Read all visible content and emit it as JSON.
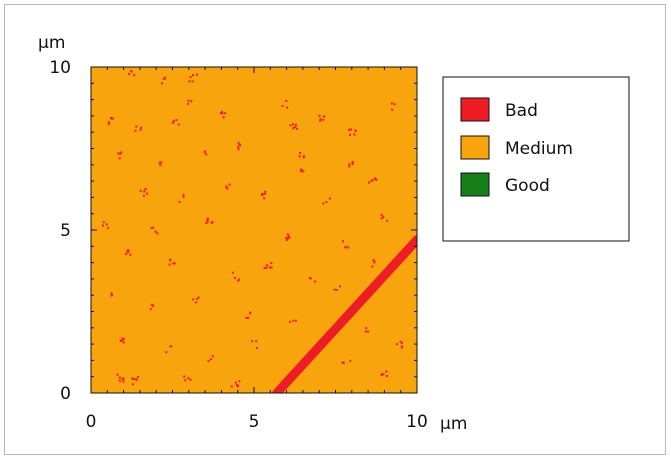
{
  "chart_data": {
    "type": "heatmap",
    "title": "",
    "xlabel": "",
    "ylabel": "",
    "x_unit": "µm",
    "y_unit": "µm",
    "xlim": [
      0,
      10
    ],
    "ylim": [
      0,
      10
    ],
    "x_ticks": [
      "0",
      "5",
      "10"
    ],
    "y_ticks": [
      "0",
      "5",
      "10"
    ],
    "legend_position": "right",
    "classes": [
      {
        "name": "Bad",
        "color": "#ee1c25"
      },
      {
        "name": "Medium",
        "color": "#f7a40d"
      },
      {
        "name": "Good",
        "color": "#17801a"
      }
    ],
    "background_class": "Medium",
    "diagonal_band": {
      "class": "Bad",
      "from": [
        5.7,
        0
      ],
      "to": [
        10,
        4.7
      ]
    },
    "defect_spots": [
      [
        1.2,
        9.8
      ],
      [
        2.2,
        9.6
      ],
      [
        3.1,
        9.7
      ],
      [
        0.6,
        8.4
      ],
      [
        1.4,
        8.1
      ],
      [
        2.6,
        8.3
      ],
      [
        4.0,
        8.6
      ],
      [
        5.9,
        8.9
      ],
      [
        6.2,
        8.2
      ],
      [
        7.1,
        8.5
      ],
      [
        8.0,
        8.0
      ],
      [
        9.2,
        8.8
      ],
      [
        0.9,
        7.3
      ],
      [
        2.1,
        7.0
      ],
      [
        3.4,
        7.4
      ],
      [
        4.6,
        7.6
      ],
      [
        6.4,
        7.3
      ],
      [
        7.9,
        7.1
      ],
      [
        8.6,
        6.6
      ],
      [
        1.6,
        6.2
      ],
      [
        2.8,
        6.0
      ],
      [
        4.2,
        6.4
      ],
      [
        5.3,
        6.1
      ],
      [
        7.2,
        5.9
      ],
      [
        9.0,
        5.4
      ],
      [
        0.4,
        5.2
      ],
      [
        1.9,
        5.0
      ],
      [
        3.6,
        5.3
      ],
      [
        6.0,
        4.8
      ],
      [
        7.8,
        4.6
      ],
      [
        8.7,
        4.0
      ],
      [
        1.1,
        4.3
      ],
      [
        2.5,
        4.0
      ],
      [
        4.4,
        3.6
      ],
      [
        5.4,
        3.9
      ],
      [
        6.8,
        3.5
      ],
      [
        7.5,
        3.2
      ],
      [
        0.7,
        3.0
      ],
      [
        1.8,
        2.7
      ],
      [
        3.2,
        2.9
      ],
      [
        4.8,
        2.4
      ],
      [
        6.2,
        2.2
      ],
      [
        8.4,
        1.9
      ],
      [
        9.4,
        1.5
      ],
      [
        0.9,
        1.6
      ],
      [
        2.4,
        1.4
      ],
      [
        3.6,
        1.1
      ],
      [
        5.0,
        1.5
      ],
      [
        7.8,
        0.9
      ],
      [
        9.0,
        0.6
      ],
      [
        0.9,
        0.5
      ],
      [
        1.3,
        0.4
      ],
      [
        2.9,
        0.5
      ],
      [
        4.4,
        0.3
      ],
      [
        6.5,
        6.8
      ],
      [
        3.0,
        8.9
      ]
    ]
  }
}
